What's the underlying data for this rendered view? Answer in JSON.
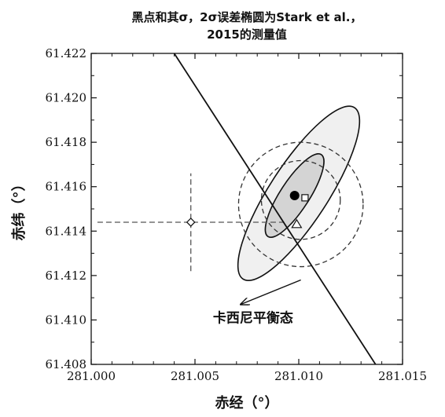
{
  "chart_data": {
    "type": "scatter",
    "title_line1": "黑点和其σ，2σ误差椭圆为Stark et al.，",
    "title_line2": "2015的测量值",
    "xlabel": "赤经（°）",
    "ylabel": "赤纬（°）",
    "xlim": [
      281.0,
      281.015
    ],
    "ylim": [
      61.408,
      61.422
    ],
    "x_ticks": [
      "281.000",
      "281.005",
      "281.010",
      "281.015"
    ],
    "y_ticks": [
      "61.408",
      "61.410",
      "61.412",
      "61.414",
      "61.416",
      "61.418",
      "61.420",
      "61.422"
    ],
    "x_tick_values": [
      281.0,
      281.005,
      281.01,
      281.015
    ],
    "y_tick_values": [
      61.408,
      61.41,
      61.412,
      61.414,
      61.416,
      61.418,
      61.42,
      61.422
    ],
    "grid": false,
    "black_point": {
      "x": 281.0098,
      "y": 61.4156
    },
    "square_point": {
      "x": 281.0103,
      "y": 61.4155
    },
    "triangle_point": {
      "x": 281.0099,
      "y": 61.4143
    },
    "diamond_point": {
      "x": 281.0048,
      "y": 61.4144,
      "x_err": 0.0045,
      "y_err": 0.0022
    },
    "ellipse_1sigma": {
      "cx": 281.0098,
      "cy": 61.4156,
      "rx": 0.0007,
      "ry": 0.0022,
      "angle_deg": 33
    },
    "ellipse_2sigma": {
      "cx": 281.01,
      "cy": 61.4157,
      "rx": 0.0014,
      "ry": 0.0046,
      "angle_deg": 33
    },
    "dashed_circle_inner": {
      "cx": 281.0101,
      "cy": 61.4154,
      "r_x": 0.0019
    },
    "dashed_circle_outer": {
      "cx": 281.0101,
      "cy": 61.4152,
      "r_x": 0.003
    },
    "equilibrium_line": [
      {
        "x": 281.004,
        "y": 61.422
      },
      {
        "x": 281.0137,
        "y": 61.408
      }
    ],
    "annotation": {
      "text": "卡西尼平衡态",
      "arrow_from": {
        "x": 281.0101,
        "y": 61.4118
      },
      "arrow_to": {
        "x": 281.0072,
        "y": 61.4107
      },
      "text_pos": {
        "x": 281.0078,
        "y": 61.4099
      }
    }
  }
}
